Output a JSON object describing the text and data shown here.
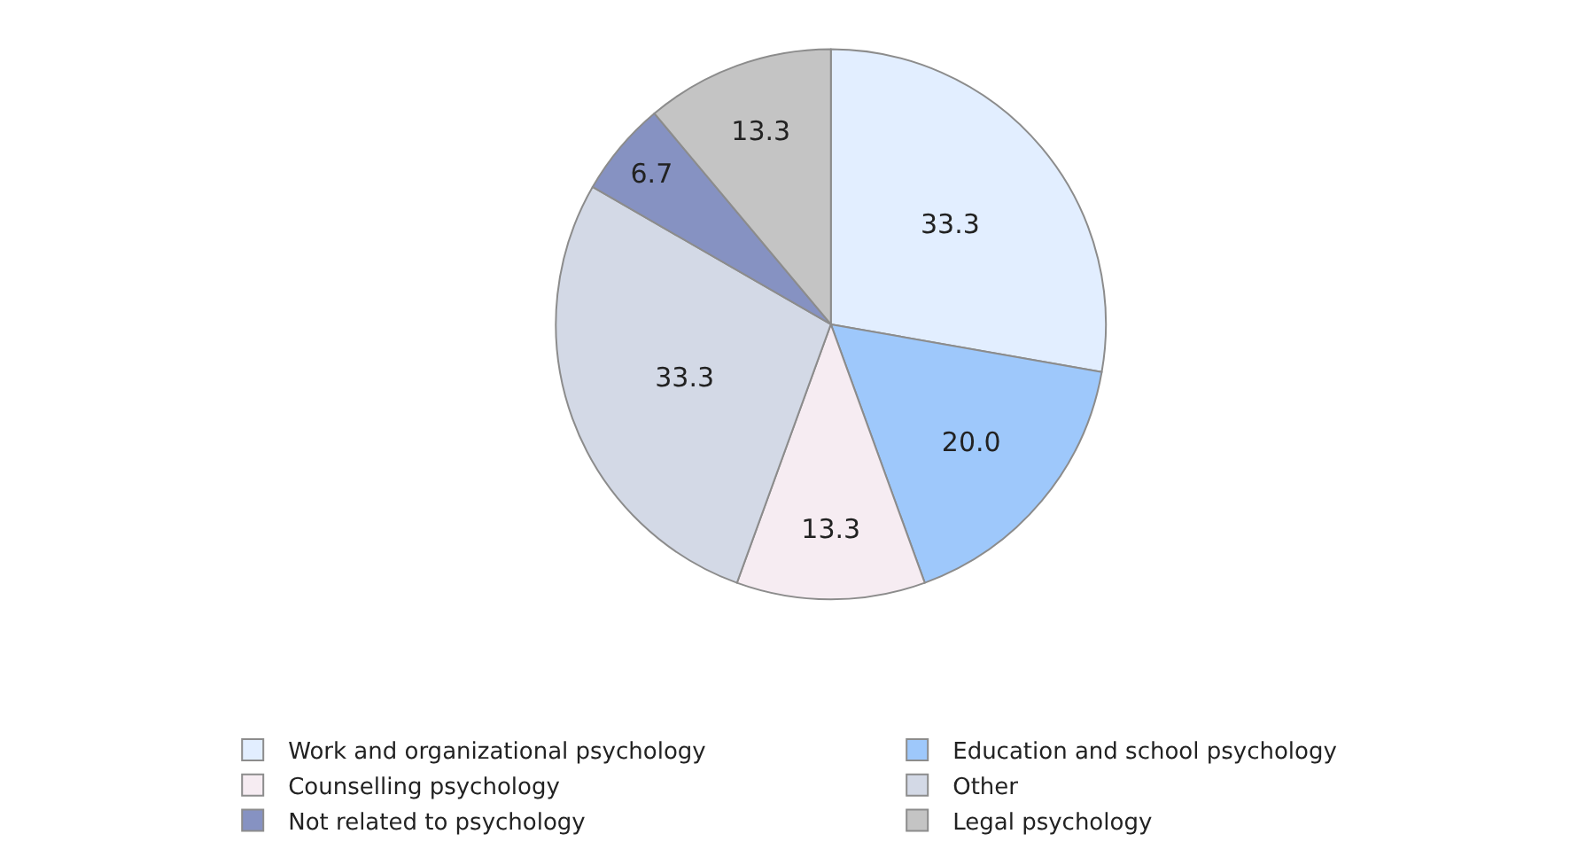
{
  "chart_data": {
    "type": "pie",
    "categories": [
      "Work and organizational psychology",
      "Education and school psychology",
      "Counselling psychology",
      "Other",
      "Not related to psychology",
      "Legal psychology"
    ],
    "values": [
      33.3,
      20.0,
      13.3,
      33.3,
      6.7,
      13.3
    ],
    "colors": [
      "#e2eeff",
      "#9ec8fb",
      "#f6ecf2",
      "#d3d9e6",
      "#8692c2",
      "#c4c4c4"
    ],
    "value_labels": [
      "33.3",
      "20.0",
      "13.3",
      "33.3",
      "6.7",
      "13.3"
    ],
    "legend": "bottom"
  }
}
